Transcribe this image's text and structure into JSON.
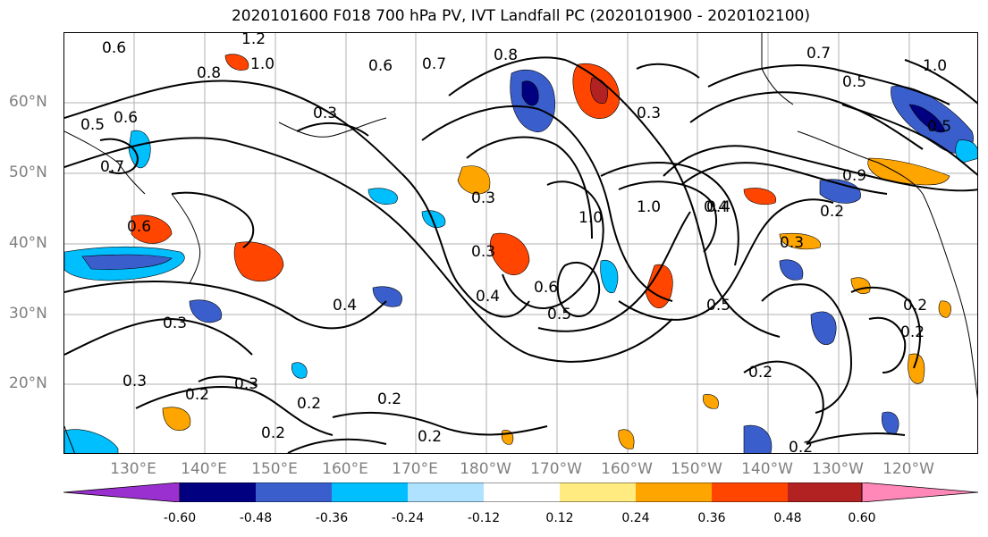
{
  "title": "2020101600 F018 700 hPa PV, IVT Landfall PC (2020101900 - 2020102100)",
  "lat_labels": [
    "60°N",
    "50°N",
    "40°N",
    "30°N",
    "20°N"
  ],
  "lon_labels": [
    "130°E",
    "140°E",
    "150°E",
    "160°E",
    "170°E",
    "180°W",
    "170°W",
    "160°W",
    "150°W",
    "140°W",
    "130°W",
    "120°W"
  ],
  "contour_labels": [
    "1.2",
    "1.0",
    "0.7",
    "0.6",
    "0.8",
    "0.5",
    "0.4",
    "0.3",
    "0.2",
    "0.9"
  ],
  "colorbar": {
    "colors": [
      "#9b30d0",
      "#000080",
      "#3a5fcd",
      "#00bfff",
      "#aee2ff",
      "#ffffff",
      "#ffeb80",
      "#ffa500",
      "#ff4500",
      "#b22222",
      "#ff88b8"
    ],
    "tick_labels": [
      "-0.60",
      "-0.48",
      "-0.36",
      "-0.24",
      "-0.12",
      "0.12",
      "0.24",
      "0.36",
      "0.48",
      "0.60"
    ]
  }
}
